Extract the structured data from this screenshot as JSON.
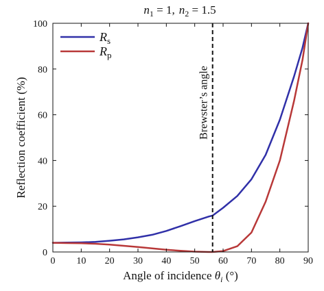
{
  "chart_data": {
    "type": "line",
    "title": {
      "n1_symbol": "n",
      "n1_sub": "1",
      "n1_value": " = 1,",
      "n2_symbol": "n",
      "n2_sub": "2",
      "n2_value": " = 1.5"
    },
    "xlabel": {
      "text": "Angle of incidence ",
      "symbol": "θ",
      "sub": "i",
      "unit": " (°)"
    },
    "ylabel": "Reflection coefficient (%)",
    "xlim": [
      0,
      90
    ],
    "ylim": [
      0,
      100
    ],
    "xticks": [
      "0",
      "10",
      "20",
      "30",
      "40",
      "50",
      "60",
      "70",
      "80",
      "90"
    ],
    "yticks": [
      "0",
      "20",
      "40",
      "60",
      "80",
      "100"
    ],
    "x": [
      0,
      5,
      10,
      15,
      20,
      25,
      30,
      35,
      40,
      45,
      50,
      55,
      56.3,
      60,
      65,
      70,
      75,
      80,
      85,
      88,
      90
    ],
    "series": [
      {
        "name_symbol": "R",
        "name_sub": "s",
        "color": "#3030a8",
        "values": [
          4.0,
          4.1,
          4.2,
          4.4,
          4.9,
          5.5,
          6.4,
          7.5,
          9.2,
          11.3,
          13.5,
          15.5,
          15.9,
          19.3,
          24.5,
          31.8,
          42.5,
          57.8,
          76.7,
          89.3,
          100
        ]
      },
      {
        "name_symbol": "R",
        "name_sub": "p",
        "color": "#b83838",
        "values": [
          4.0,
          3.9,
          3.8,
          3.6,
          3.2,
          2.7,
          2.2,
          1.6,
          1.0,
          0.5,
          0.15,
          0.01,
          0.0,
          0.4,
          2.5,
          8.5,
          22.0,
          40.0,
          66.0,
          84.0,
          100
        ]
      }
    ],
    "annotations": [
      {
        "text": "Brewster’s angle",
        "x": 56.3
      }
    ],
    "grid": false,
    "legend_position": "top-left",
    "colors": {
      "axis": "#111111",
      "annotation_line": "#111111"
    }
  }
}
